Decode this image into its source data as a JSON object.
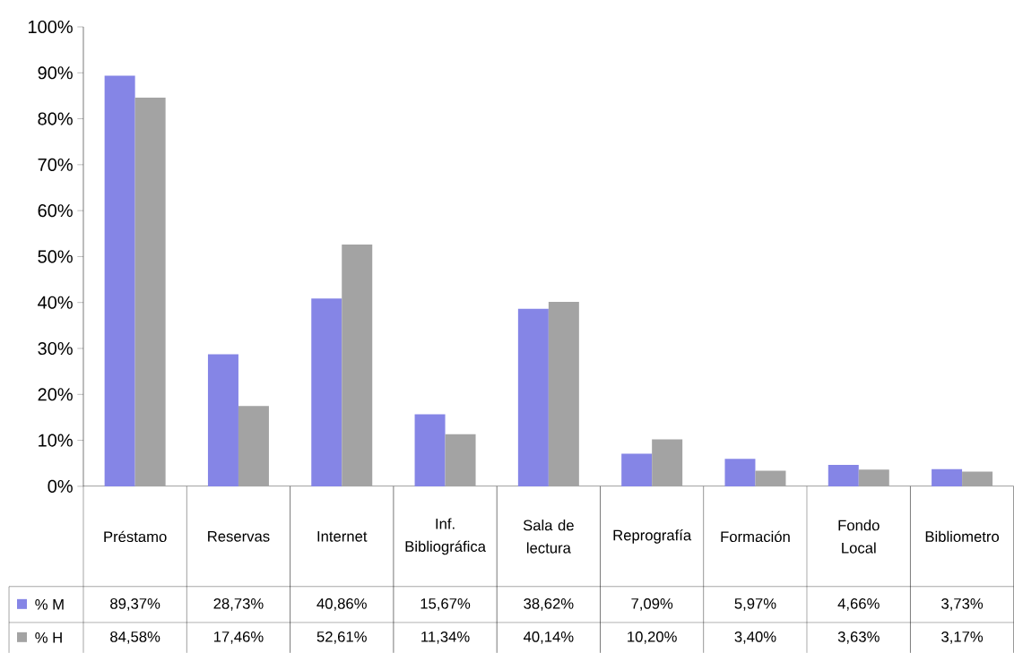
{
  "chart_data": {
    "type": "bar",
    "categories": [
      "Préstamo",
      "Reservas",
      "Internet",
      "Inf. Bibliográfica",
      "Sala de lectura",
      "Reprografía",
      "Formación",
      "Fondo Local",
      "Bibliometro"
    ],
    "series": [
      {
        "name": "% M",
        "color": "#8585e6",
        "values": [
          89.37,
          28.73,
          40.86,
          15.67,
          38.62,
          7.09,
          5.97,
          4.66,
          3.73
        ],
        "value_labels": [
          "89,37%",
          "28,73%",
          "40,86%",
          "15,67%",
          "38,62%",
          "7,09%",
          "5,97%",
          "4,66%",
          "3,73%"
        ]
      },
      {
        "name": "% H",
        "color": "#a3a3a3",
        "values": [
          84.58,
          17.46,
          52.61,
          11.34,
          40.14,
          10.2,
          3.4,
          3.63,
          3.17
        ],
        "value_labels": [
          "84,58%",
          "17,46%",
          "52,61%",
          "11,34%",
          "40,14%",
          "10,20%",
          "3,40%",
          "3,63%",
          "3,17%"
        ]
      }
    ],
    "ylim": [
      0,
      100
    ],
    "yticks": [
      {
        "value": 0,
        "label": "0%"
      },
      {
        "value": 10,
        "label": "10%"
      },
      {
        "value": 20,
        "label": "20%"
      },
      {
        "value": 30,
        "label": "30%"
      },
      {
        "value": 40,
        "label": "40%"
      },
      {
        "value": 50,
        "label": "50%"
      },
      {
        "value": 60,
        "label": "60%"
      },
      {
        "value": 70,
        "label": "70%"
      },
      {
        "value": 80,
        "label": "80%"
      },
      {
        "value": 90,
        "label": "90%"
      },
      {
        "value": 100,
        "label": "100%"
      }
    ],
    "legend": "bottom left"
  }
}
